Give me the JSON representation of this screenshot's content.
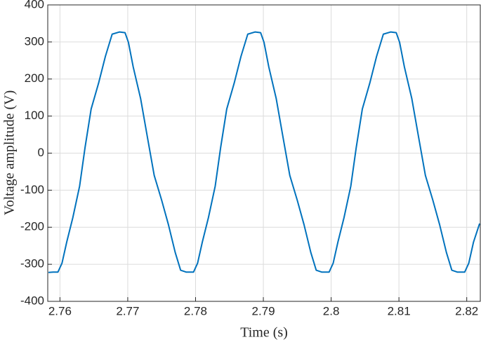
{
  "chart_data": {
    "type": "line",
    "x_label": "Time (s)",
    "y_label": "Voltage amplitude (V)",
    "x": [
      2.7583,
      2.759,
      2.7597,
      2.7603,
      2.761,
      2.7619,
      2.7629,
      2.7637,
      2.7646,
      2.7657,
      2.7667,
      2.7677,
      2.7688,
      2.7696,
      2.7701,
      2.7708,
      2.7719,
      2.7729,
      2.7739,
      2.775,
      2.776,
      2.777,
      2.7778,
      2.7786,
      2.779,
      2.7797,
      2.7803,
      2.781,
      2.7819,
      2.7829,
      2.7837,
      2.7846,
      2.7857,
      2.7867,
      2.7877,
      2.7888,
      2.7896,
      2.7901,
      2.7908,
      2.7919,
      2.7929,
      2.7939,
      2.795,
      2.796,
      2.797,
      2.7978,
      2.7986,
      2.799,
      2.7997,
      2.8003,
      2.801,
      2.8019,
      2.8029,
      2.8037,
      2.8046,
      2.8057,
      2.8067,
      2.8077,
      2.8088,
      2.8096,
      2.8101,
      2.8108,
      2.8119,
      2.8129,
      2.8139,
      2.815,
      2.816,
      2.817,
      2.8178,
      2.8186,
      2.819,
      2.8197,
      2.8203,
      2.821,
      2.8219
    ],
    "series": [
      {
        "name": "Voltage",
        "color": "#0072bd",
        "values": [
          -322,
          -321,
          -321,
          -297,
          -240,
          -174,
          -89,
          15,
          119,
          189,
          261,
          321,
          327,
          325,
          299,
          233,
          147,
          43,
          -60,
          -127,
          -193,
          -268,
          -316,
          -321,
          -321,
          -321,
          -297,
          -240,
          -174,
          -89,
          15,
          119,
          189,
          261,
          321,
          327,
          325,
          299,
          233,
          147,
          43,
          -60,
          -127,
          -193,
          -268,
          -316,
          -321,
          -321,
          -321,
          -297,
          -240,
          -174,
          -89,
          15,
          119,
          189,
          261,
          321,
          327,
          325,
          299,
          233,
          147,
          43,
          -60,
          -127,
          -193,
          -268,
          -316,
          -321,
          -321,
          -321,
          -297,
          -240,
          -190
        ]
      }
    ],
    "xlim": [
      2.7582,
      2.822
    ],
    "xticks": [
      2.76,
      2.77,
      2.78,
      2.79,
      2.8,
      2.81,
      2.82
    ],
    "ylim": [
      -400,
      400
    ],
    "yticks": [
      -400,
      -300,
      -200,
      -100,
      0,
      100,
      200,
      300,
      400
    ],
    "grid": true
  }
}
